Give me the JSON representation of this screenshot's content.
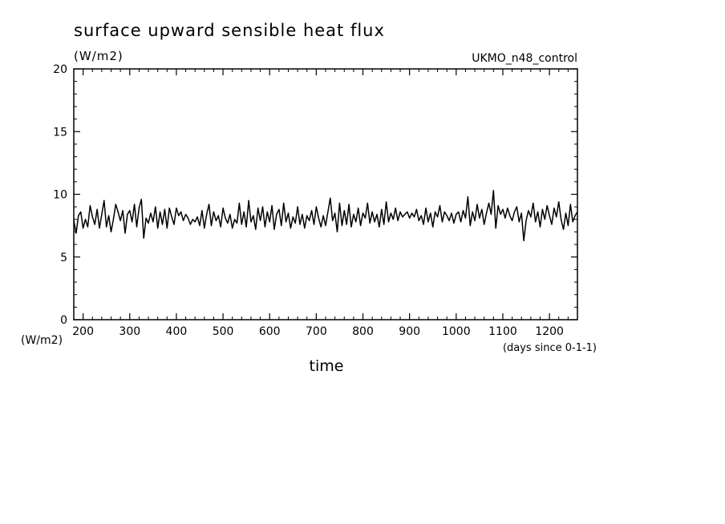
{
  "chart_data": {
    "type": "line",
    "title": "surface upward sensible heat flux",
    "units_label": "(W/m2)",
    "dataset_label": "UKMO_n48_control",
    "ylabel": "(W/m2)",
    "xlabel": "time",
    "x_units_label": "(days since 0-1-1)",
    "xlim": [
      180,
      1260
    ],
    "ylim": [
      0,
      20
    ],
    "x_ticks": [
      200,
      300,
      400,
      500,
      600,
      700,
      800,
      900,
      1000,
      1100,
      1200
    ],
    "y_ticks": [
      0,
      5,
      10,
      15,
      20
    ],
    "x_tick_labels": [
      "200",
      "300",
      "400",
      "500",
      "600",
      "700",
      "800",
      "900",
      "1000",
      "1100",
      "1200"
    ],
    "y_tick_labels": [
      "0",
      "5",
      "10",
      "15",
      "20"
    ],
    "grid": false,
    "series": [
      {
        "color": "#000000",
        "x": [
          180,
          185,
          190,
          195,
          200,
          205,
          210,
          215,
          220,
          225,
          230,
          235,
          240,
          245,
          250,
          255,
          260,
          265,
          270,
          275,
          280,
          285,
          290,
          295,
          300,
          305,
          310,
          315,
          320,
          325,
          330,
          335,
          340,
          345,
          350,
          355,
          360,
          365,
          370,
          375,
          380,
          385,
          390,
          395,
          400,
          405,
          410,
          415,
          420,
          425,
          430,
          435,
          440,
          445,
          450,
          455,
          460,
          465,
          470,
          475,
          480,
          485,
          490,
          495,
          500,
          505,
          510,
          515,
          520,
          525,
          530,
          535,
          540,
          545,
          550,
          555,
          560,
          565,
          570,
          575,
          580,
          585,
          590,
          595,
          600,
          605,
          610,
          615,
          620,
          625,
          630,
          635,
          640,
          645,
          650,
          655,
          660,
          665,
          670,
          675,
          680,
          685,
          690,
          695,
          700,
          705,
          710,
          715,
          720,
          725,
          730,
          735,
          740,
          745,
          750,
          755,
          760,
          765,
          770,
          775,
          780,
          785,
          790,
          795,
          800,
          805,
          810,
          815,
          820,
          825,
          830,
          835,
          840,
          845,
          850,
          855,
          860,
          865,
          870,
          875,
          880,
          885,
          890,
          895,
          900,
          905,
          910,
          915,
          920,
          925,
          930,
          935,
          940,
          945,
          950,
          955,
          960,
          965,
          970,
          975,
          980,
          985,
          990,
          995,
          1000,
          1005,
          1010,
          1015,
          1020,
          1025,
          1030,
          1035,
          1040,
          1045,
          1050,
          1055,
          1060,
          1065,
          1070,
          1075,
          1080,
          1085,
          1090,
          1095,
          1100,
          1105,
          1110,
          1115,
          1120,
          1125,
          1130,
          1135,
          1140,
          1145,
          1150,
          1155,
          1160,
          1165,
          1170,
          1175,
          1180,
          1185,
          1190,
          1195,
          1200,
          1205,
          1210,
          1215,
          1220,
          1225,
          1230,
          1235,
          1240,
          1245,
          1250,
          1255,
          1260
        ],
        "y": [
          7.9,
          6.9,
          8.3,
          8.6,
          7.3,
          8.0,
          7.4,
          9.1,
          8.2,
          7.6,
          8.8,
          7.3,
          8.4,
          9.5,
          7.4,
          8.3,
          7.0,
          8.0,
          9.2,
          8.6,
          7.9,
          8.7,
          6.9,
          8.4,
          8.7,
          7.8,
          9.2,
          7.4,
          8.9,
          9.6,
          6.5,
          8.1,
          7.7,
          8.5,
          7.8,
          9.0,
          7.3,
          8.6,
          7.6,
          8.8,
          7.3,
          8.9,
          8.2,
          7.6,
          8.9,
          8.3,
          8.6,
          7.9,
          8.4,
          8.1,
          7.6,
          8.0,
          7.8,
          8.2,
          7.5,
          8.7,
          7.3,
          8.4,
          9.2,
          7.5,
          8.6,
          7.9,
          8.3,
          7.4,
          8.9,
          8.1,
          7.7,
          8.4,
          7.3,
          8.0,
          7.7,
          9.3,
          7.6,
          8.6,
          7.4,
          9.5,
          7.8,
          8.3,
          7.2,
          8.9,
          7.9,
          9.0,
          7.4,
          8.6,
          7.8,
          9.1,
          7.2,
          8.4,
          8.8,
          7.5,
          9.3,
          7.8,
          8.5,
          7.3,
          8.2,
          7.7,
          9.0,
          7.6,
          8.4,
          7.3,
          8.3,
          7.9,
          8.7,
          7.6,
          9.0,
          8.1,
          7.4,
          8.3,
          7.5,
          8.6,
          9.7,
          7.9,
          8.5,
          7.0,
          9.3,
          7.5,
          8.7,
          7.6,
          9.2,
          7.4,
          8.4,
          7.8,
          8.9,
          7.5,
          8.5,
          8.1,
          9.3,
          7.7,
          8.6,
          7.8,
          8.4,
          7.4,
          8.8,
          7.6,
          9.4,
          7.8,
          8.5,
          8.0,
          8.9,
          7.9,
          8.6,
          8.2,
          8.4,
          8.6,
          8.1,
          8.5,
          8.2,
          8.8,
          7.9,
          8.3,
          7.6,
          8.9,
          7.8,
          8.5,
          7.4,
          8.6,
          8.2,
          9.1,
          7.8,
          8.6,
          8.3,
          7.9,
          8.5,
          7.7,
          8.4,
          8.6,
          7.8,
          8.7,
          8.1,
          9.8,
          7.5,
          8.6,
          7.9,
          9.2,
          8.1,
          8.8,
          7.6,
          8.5,
          9.3,
          8.4,
          10.3,
          7.3,
          9.1,
          8.4,
          8.8,
          8.1,
          8.9,
          8.3,
          7.9,
          8.6,
          9.0,
          7.8,
          8.5,
          6.3,
          7.9,
          8.7,
          8.2,
          9.3,
          7.8,
          8.6,
          7.4,
          8.8,
          8.0,
          9.1,
          8.3,
          7.6,
          8.9,
          8.2,
          9.4,
          8.0,
          7.2,
          8.5,
          7.5,
          9.2,
          7.8,
          8.3,
          8.6
        ]
      }
    ]
  }
}
